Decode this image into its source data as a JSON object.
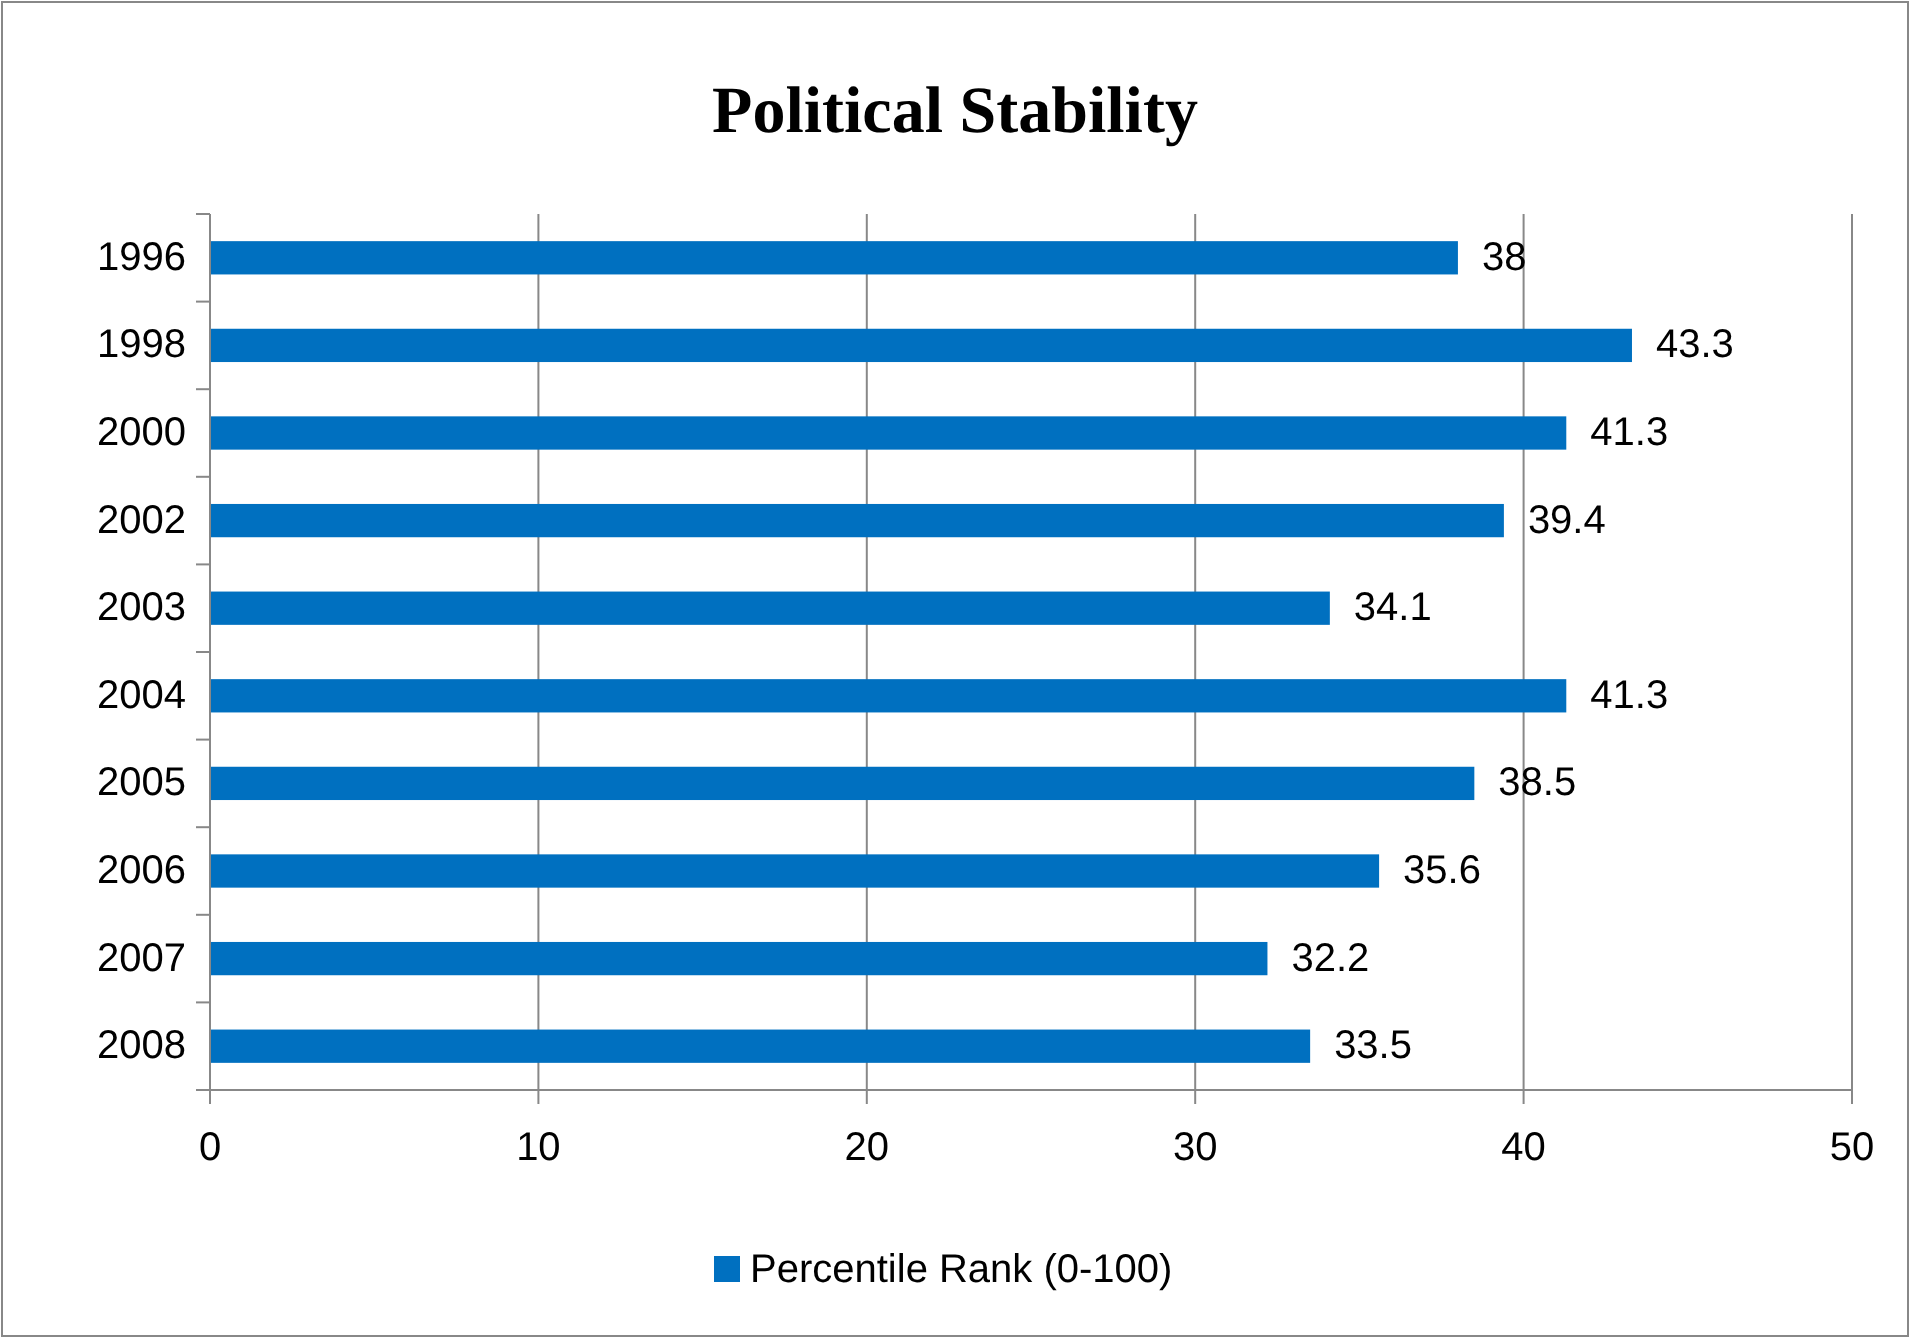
{
  "chart_data": {
    "type": "bar",
    "title": "Political Stability",
    "orientation": "horizontal",
    "categories": [
      "1996",
      "1998",
      "2000",
      "2002",
      "2003",
      "2004",
      "2005",
      "2006",
      "2007",
      "2008"
    ],
    "series": [
      {
        "name": "Percentile Rank (0-100)",
        "color": "#0070c0",
        "values": [
          38,
          43.3,
          41.3,
          39.4,
          34.1,
          41.3,
          38.5,
          35.6,
          32.2,
          33.5
        ]
      }
    ],
    "xlim": [
      0,
      50
    ],
    "xticks": [
      0,
      10,
      20,
      30,
      40,
      50
    ],
    "grid": "x",
    "legend": "bottom",
    "data_labels": true
  }
}
